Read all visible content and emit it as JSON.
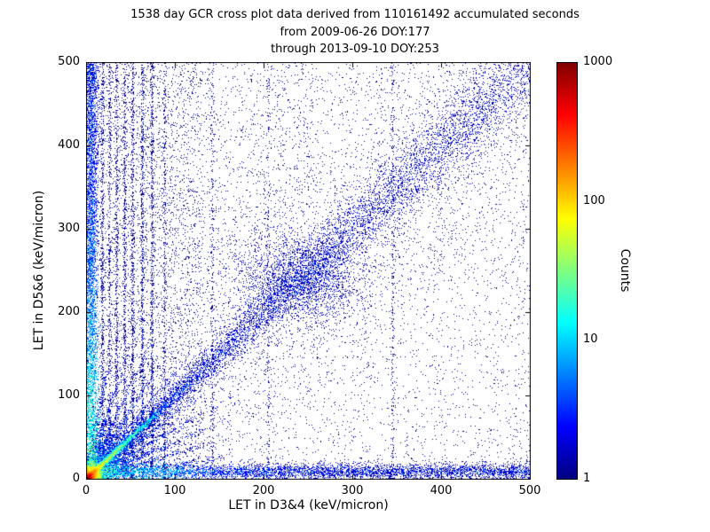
{
  "title": {
    "line1": "1538 day GCR cross plot data derived from 110161492 accumulated seconds",
    "line2": "from 2009-06-26 DOY:177",
    "line3": "through 2013-09-10 DOY:253"
  },
  "chart_data": {
    "type": "heatmap",
    "title": "1538 day GCR cross plot data derived from 110161492 accumulated seconds from 2009-06-26 DOY:177 through 2013-09-10 DOY:253",
    "xlabel": "LET in D3&4 (keV/micron)",
    "ylabel": "LET in D5&6 (keV/micron)",
    "xlim": [
      0,
      500
    ],
    "ylim": [
      0,
      500
    ],
    "xticks": [
      0,
      100,
      200,
      300,
      400,
      500
    ],
    "yticks": [
      0,
      100,
      200,
      300,
      400,
      500
    ],
    "grid": false,
    "background": "#ffffff",
    "colorbar": {
      "label": "Counts",
      "scale": "log",
      "min": 1,
      "max": 1000,
      "ticks": [
        1,
        10,
        100,
        1000
      ],
      "colormap": "jet",
      "jet_stops": [
        [
          0,
          "#000080"
        ],
        [
          0.125,
          "#0000ff"
        ],
        [
          0.375,
          "#00ffff"
        ],
        [
          0.625,
          "#ffff00"
        ],
        [
          0.875,
          "#ff0000"
        ],
        [
          1,
          "#800000"
        ]
      ]
    },
    "structures": [
      "intense hotspot at origin, peak counts ~1000 (dark red core, orange/yellow halo)",
      "bright 45-degree correlation ridge from origin fading out near (75,75)",
      "fan of faint rays radiating from origin between ~10 and ~80 degrees",
      "diffuse 1:1 diagonal correlation band spanning the full 0-500 range, densest near (240,240)",
      "horizontal band at D5&6 ~ 10 keV/micron across all D3&4, cyan near origin",
      "vertical band at D3&4 ~ 5 keV/micron up the full axis, cyan/green near origin",
      "vertical streak artifacts near D3&4 = 18-90 and fainter ones near 142, 205, 345",
      "sparse single-count (dark blue) background scatter, denser on the left half"
    ],
    "seed": 20130910,
    "density_features": [
      {
        "kind": "uniform",
        "n": 5200,
        "xr": [
          0,
          500
        ],
        "yr": [
          0,
          500
        ],
        "w": 1
      },
      {
        "kind": "uniform",
        "n": 2400,
        "xr": [
          0,
          130
        ],
        "yr": [
          0,
          500
        ],
        "w": 1
      },
      {
        "kind": "uniform",
        "n": 900,
        "xr": [
          0,
          260
        ],
        "yr": [
          250,
          500
        ],
        "w": 1
      },
      {
        "kind": "diag_scatter",
        "n": 2600,
        "len": 500,
        "sigma": 70,
        "w": 1
      },
      {
        "kind": "diag_band",
        "n": 7000,
        "len": 500,
        "w0": 3,
        "w1": 22,
        "w": 1.6
      },
      {
        "kind": "gauss_blob",
        "x": 240,
        "y": 238,
        "sx": 38,
        "sy": 28,
        "n": 2200,
        "w": 1.5
      },
      {
        "kind": "h_band",
        "y": 9,
        "sigma": 5,
        "xr": [
          0,
          500
        ],
        "n": 5200,
        "w": 1.5,
        "boost": 8,
        "bscale": 60
      },
      {
        "kind": "v_band",
        "x": 5,
        "sigma": 4,
        "yr": [
          0,
          500
        ],
        "n": 4600,
        "w": 1.5,
        "boost": 10,
        "bscale": 120
      },
      {
        "kind": "gauss_blob",
        "x": 8,
        "y": 8,
        "sx": 18,
        "sy": 18,
        "n": 2200,
        "w": 2
      },
      {
        "kind": "gauss_blob",
        "x": 3,
        "y": 3,
        "sx": 7,
        "sy": 7,
        "n": 5200,
        "w": 8
      },
      {
        "kind": "gauss_blob",
        "x": 2,
        "y": 2,
        "sx": 2.5,
        "sy": 2.5,
        "n": 900,
        "w": 25
      },
      {
        "kind": "ray",
        "angle": 45,
        "n": 2600,
        "scale": 38,
        "max": 115,
        "width": 1.6,
        "w": 6
      },
      {
        "kind": "ray",
        "angle": 45,
        "n": 900,
        "scale": 75,
        "max": 200,
        "width": 2.5,
        "w": 2.5
      },
      {
        "kind": "ray",
        "angle": 10,
        "n": 420,
        "scale": 55,
        "max": 170,
        "width": 1.6,
        "w": 2
      },
      {
        "kind": "ray",
        "angle": 17,
        "n": 450,
        "scale": 55,
        "max": 170,
        "width": 1.6,
        "w": 2
      },
      {
        "kind": "ray",
        "angle": 24,
        "n": 480,
        "scale": 58,
        "max": 180,
        "width": 1.6,
        "w": 2
      },
      {
        "kind": "ray",
        "angle": 31,
        "n": 480,
        "scale": 60,
        "max": 190,
        "width": 1.6,
        "w": 2
      },
      {
        "kind": "ray",
        "angle": 38,
        "n": 450,
        "scale": 60,
        "max": 190,
        "width": 1.6,
        "w": 2
      },
      {
        "kind": "ray",
        "angle": 52,
        "n": 450,
        "scale": 60,
        "max": 190,
        "width": 1.6,
        "w": 2
      },
      {
        "kind": "ray",
        "angle": 59,
        "n": 480,
        "scale": 60,
        "max": 190,
        "width": 1.6,
        "w": 2
      },
      {
        "kind": "ray",
        "angle": 66,
        "n": 480,
        "scale": 58,
        "max": 180,
        "width": 1.6,
        "w": 2
      },
      {
        "kind": "ray",
        "angle": 73,
        "n": 450,
        "scale": 55,
        "max": 170,
        "width": 1.6,
        "w": 2
      },
      {
        "kind": "ray",
        "angle": 80,
        "n": 420,
        "scale": 55,
        "max": 170,
        "width": 1.6,
        "w": 2
      },
      {
        "kind": "v_streak",
        "x": 18,
        "n": 520,
        "ymax": 500
      },
      {
        "kind": "v_streak",
        "x": 26,
        "n": 430,
        "ymax": 500
      },
      {
        "kind": "v_streak",
        "x": 34,
        "n": 500,
        "ymax": 500
      },
      {
        "kind": "v_streak",
        "x": 43,
        "n": 560,
        "ymax": 500
      },
      {
        "kind": "v_streak",
        "x": 52,
        "n": 600,
        "ymax": 500
      },
      {
        "kind": "v_streak",
        "x": 63,
        "n": 700,
        "ymax": 500
      },
      {
        "kind": "v_streak",
        "x": 74,
        "n": 640,
        "ymax": 500
      },
      {
        "kind": "v_streak",
        "x": 88,
        "n": 360,
        "ymax": 500
      },
      {
        "kind": "v_streak",
        "x": 142,
        "n": 240,
        "ymax": 500
      },
      {
        "kind": "v_streak",
        "x": 205,
        "n": 200,
        "ymax": 500
      },
      {
        "kind": "v_streak",
        "x": 345,
        "n": 240,
        "ymax": 500
      },
      {
        "kind": "h_streak",
        "y": 52,
        "n": 150,
        "xmax": 90
      },
      {
        "kind": "h_streak",
        "y": 66,
        "n": 170,
        "xmax": 100
      }
    ]
  }
}
